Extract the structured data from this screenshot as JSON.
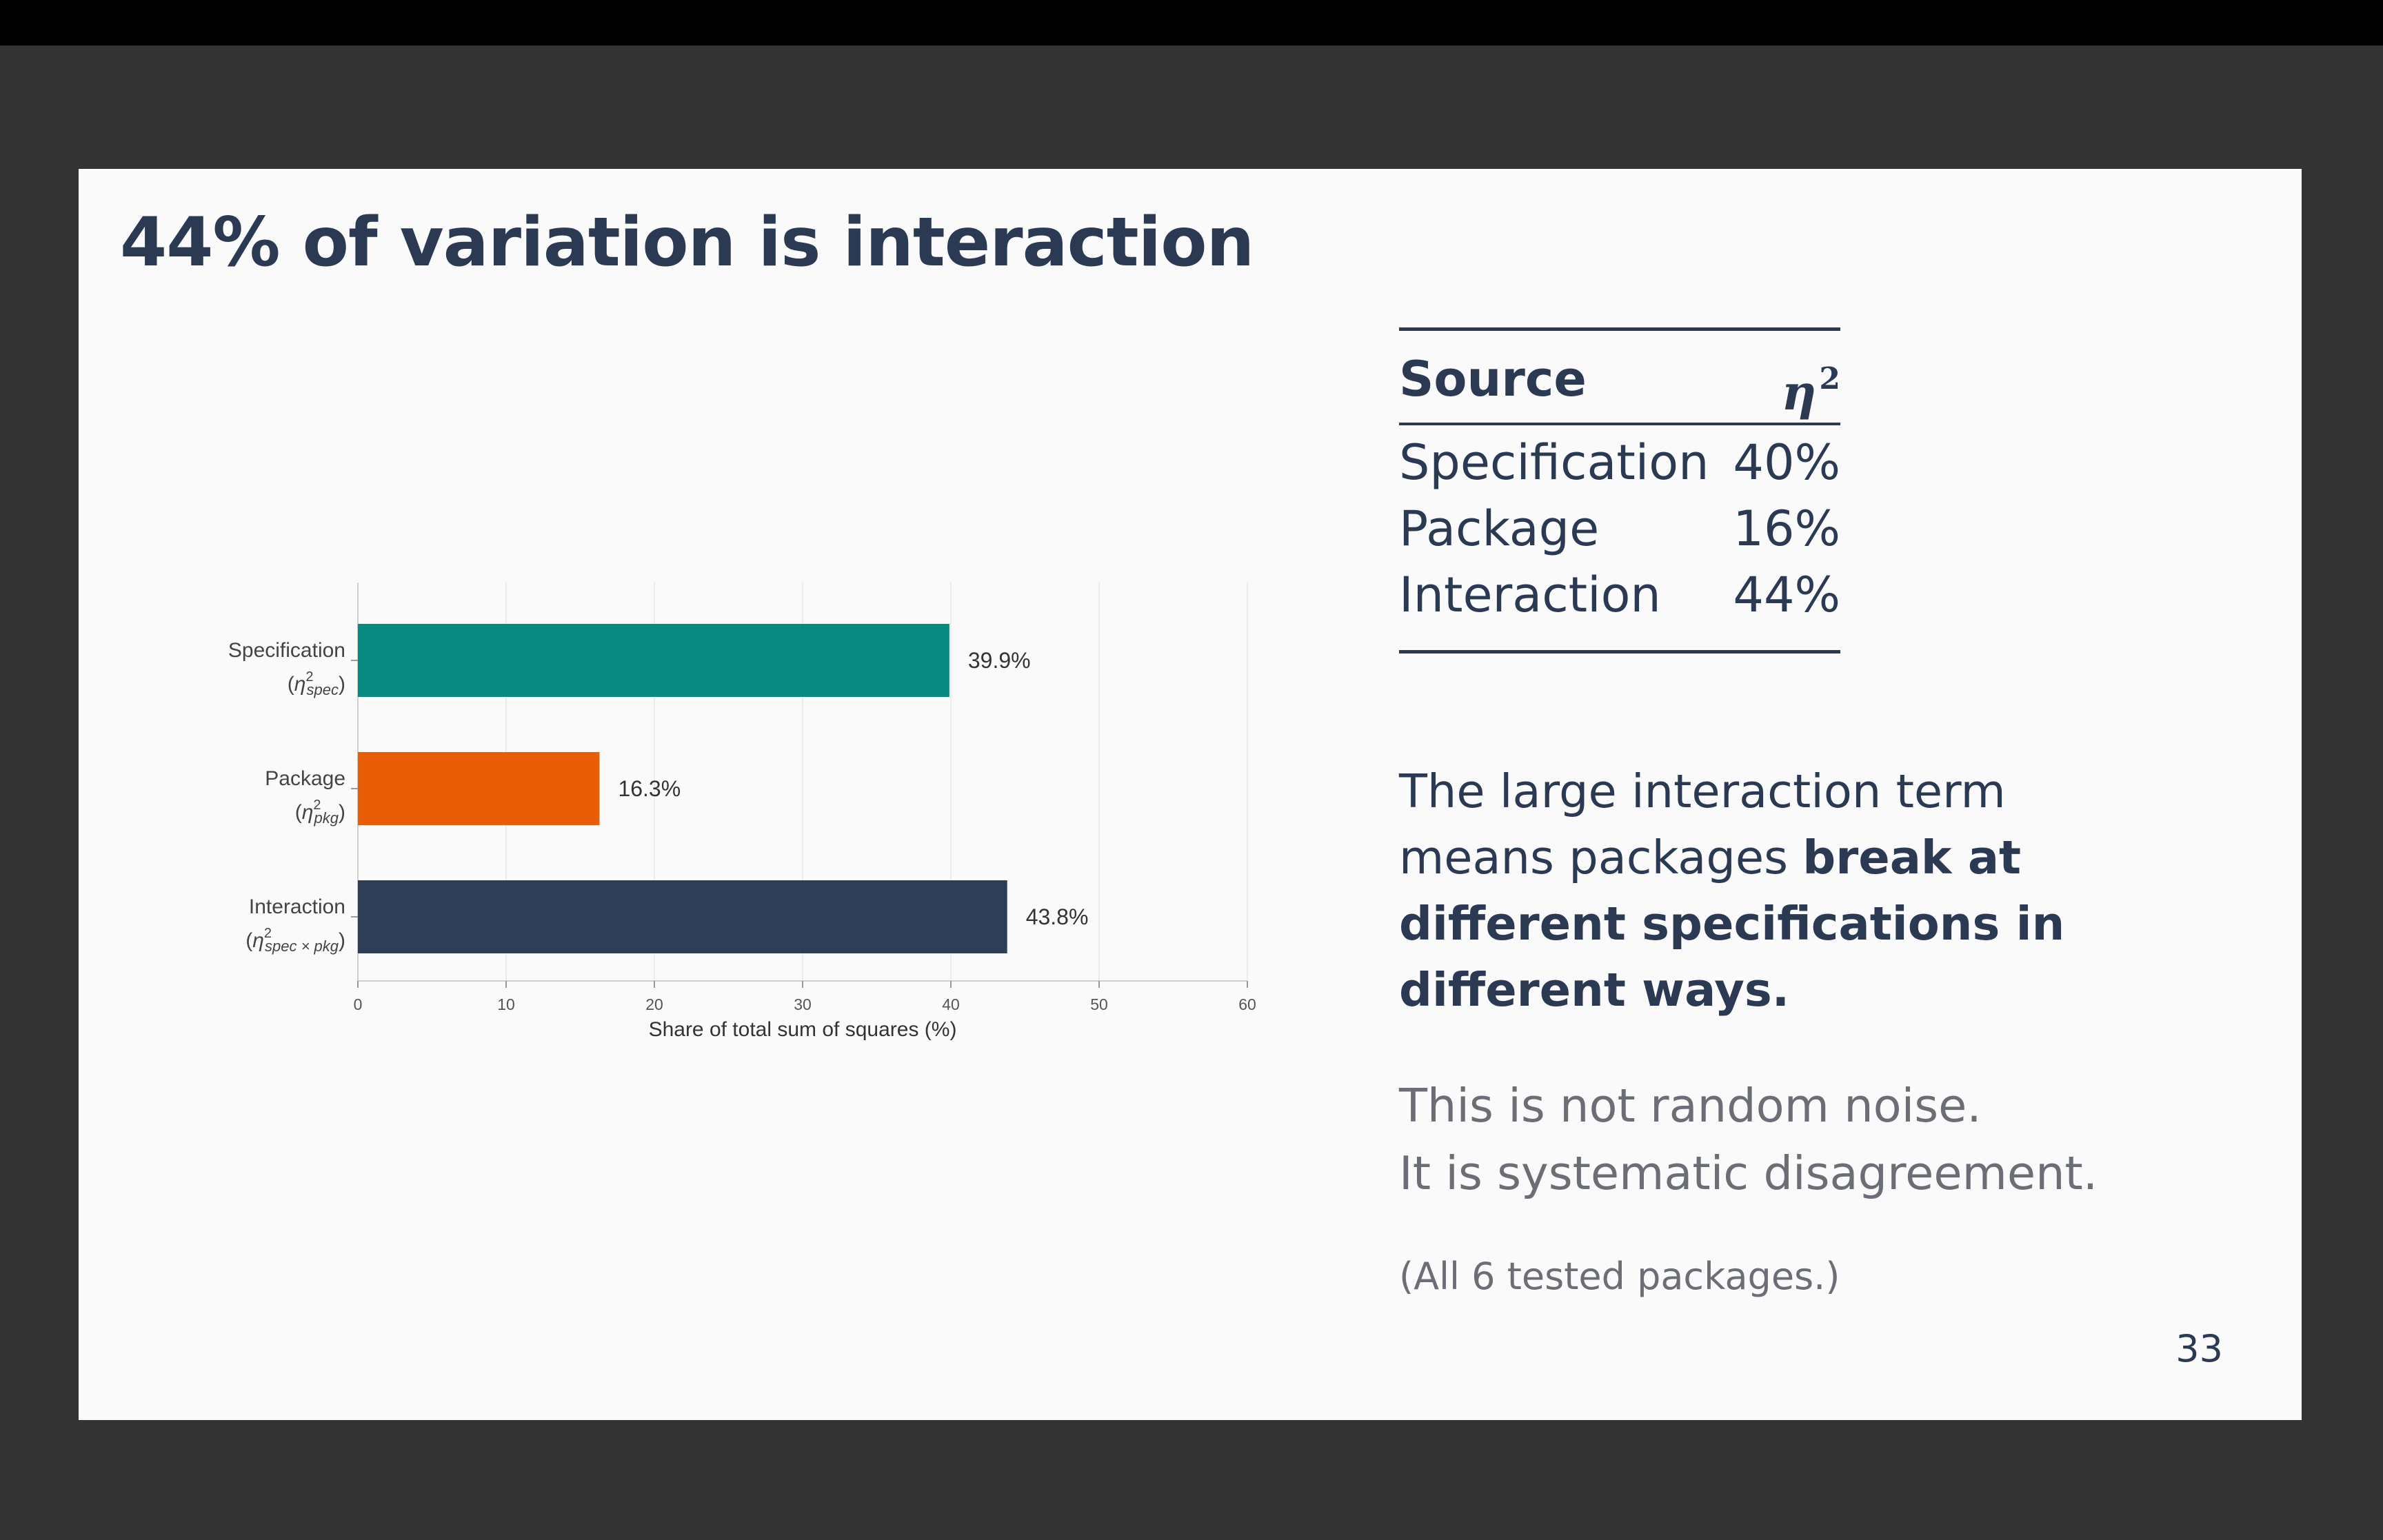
{
  "slide": {
    "title": "44% of variation is interaction",
    "page_number": "33"
  },
  "table": {
    "header_source": "Source",
    "header_eta": "η",
    "header_eta_sup": "2",
    "rows": [
      {
        "source": "Specification",
        "value": "40%"
      },
      {
        "source": "Package",
        "value": "16%"
      },
      {
        "source": "Interaction",
        "value": "44%"
      }
    ]
  },
  "text": {
    "para_plain": "The large interaction term means packages ",
    "para_bold": "break at different specifications in different ways.",
    "note_line1": "This is not random noise.",
    "note_line2": "It is systematic disagreement.",
    "footnote": "(All 6 tested packages.)"
  },
  "colors": {
    "specification": "#088a80",
    "package": "#e85d06",
    "interaction": "#2d3e56",
    "title": "#2b3a52"
  },
  "chart_data": {
    "type": "bar",
    "orientation": "horizontal",
    "categories": [
      "Specification",
      "Package",
      "Interaction"
    ],
    "category_sublabels": [
      {
        "sym": "η",
        "sup": "2",
        "sub": "spec"
      },
      {
        "sym": "η",
        "sup": "2",
        "sub": "pkg"
      },
      {
        "sym": "η",
        "sup": "2",
        "sub": "spec × pkg"
      }
    ],
    "values": [
      39.9,
      16.3,
      43.8
    ],
    "value_labels": [
      "39.9%",
      "16.3%",
      "43.8%"
    ],
    "xlabel": "Share of total sum of squares (%)",
    "xlim": [
      0,
      60
    ],
    "xticks": [
      0,
      10,
      20,
      30,
      40,
      50,
      60
    ],
    "grid": true
  }
}
